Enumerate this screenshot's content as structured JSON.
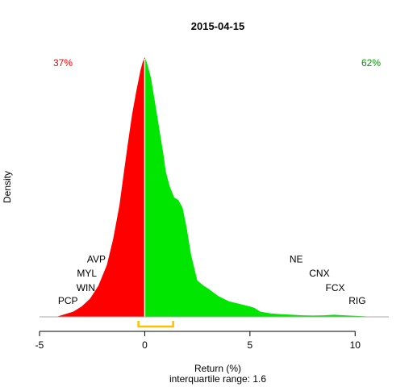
{
  "chart_data": {
    "type": "area",
    "title": "2015-04-15",
    "xlabel": "Return (%)",
    "xlabel_sub": "interquartile range: 1.6",
    "ylabel": "Density",
    "xlim": [
      -5.0,
      11.6
    ],
    "ylim": [
      0,
      1.0
    ],
    "xticks": [
      -5,
      0,
      5,
      10
    ],
    "grid": false,
    "split_at": 0,
    "negative_color": "#ff0000",
    "positive_color": "#00e600",
    "negative_share_label": "37%",
    "positive_share_label": "62%",
    "interquartile_range": [
      -0.3,
      1.35
    ],
    "iqr_color": "#ffc000",
    "density": {
      "x": [
        -4.2,
        -3.8,
        -3.4,
        -3.0,
        -2.6,
        -2.2,
        -1.8,
        -1.5,
        -1.2,
        -1.0,
        -0.8,
        -0.6,
        -0.4,
        -0.2,
        -0.1,
        0.0,
        0.1,
        0.3,
        0.5,
        0.7,
        0.9,
        1.0,
        1.2,
        1.4,
        1.6,
        1.8,
        2.0,
        2.2,
        2.5,
        2.8,
        3.0,
        3.5,
        4.0,
        4.5,
        5.0,
        5.2,
        5.5,
        6.0,
        6.5,
        7.0,
        7.5,
        8.0,
        8.5,
        9.0,
        9.5,
        10.0,
        10.5,
        10.7
      ],
      "y": [
        0.0,
        0.01,
        0.02,
        0.04,
        0.07,
        0.12,
        0.2,
        0.3,
        0.43,
        0.55,
        0.67,
        0.78,
        0.87,
        0.95,
        0.98,
        1.0,
        0.98,
        0.92,
        0.82,
        0.72,
        0.62,
        0.56,
        0.5,
        0.46,
        0.45,
        0.42,
        0.34,
        0.24,
        0.14,
        0.12,
        0.11,
        0.08,
        0.06,
        0.05,
        0.04,
        0.035,
        0.02,
        0.013,
        0.01,
        0.008,
        0.006,
        0.005,
        0.006,
        0.008,
        0.006,
        0.004,
        0.002,
        0.0
      ]
    },
    "annotations": [
      {
        "label": "AVP",
        "x": -2.3,
        "y": 0.21
      },
      {
        "label": "MYL",
        "x": -2.75,
        "y": 0.155
      },
      {
        "label": "WIN",
        "x": -2.8,
        "y": 0.1
      },
      {
        "label": "PCP",
        "x": -3.65,
        "y": 0.05
      },
      {
        "label": "NE",
        "x": 7.2,
        "y": 0.21
      },
      {
        "label": "CNX",
        "x": 8.3,
        "y": 0.155
      },
      {
        "label": "FCX",
        "x": 9.05,
        "y": 0.1
      },
      {
        "label": "RIG",
        "x": 10.1,
        "y": 0.05
      }
    ]
  }
}
